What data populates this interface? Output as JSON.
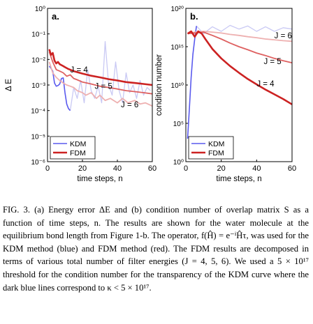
{
  "chart_data": [
    {
      "type": "line",
      "panel_label": "a.",
      "xlabel": "time steps, n",
      "ylabel": "Δ E",
      "xlim": [
        0,
        60
      ],
      "ylim": [
        1e-06,
        1
      ],
      "yscale": "log",
      "xticks": [
        "0",
        "20",
        "40",
        "60"
      ],
      "yticks": [
        "10⁻⁶",
        "10⁻⁵",
        "10⁻⁴",
        "10⁻³",
        "10⁻²",
        "10⁻¹",
        "10⁰"
      ],
      "series": [
        {
          "group": "KDM",
          "color": "#5a5aee",
          "x": [
            1,
            2,
            3,
            4,
            5,
            6,
            7,
            8,
            9,
            10,
            11,
            12,
            13
          ],
          "y": [
            0.0055,
            0.0045,
            0.0035,
            0.0012,
            0.0009,
            0.00095,
            0.0011,
            0.0018,
            0.0019,
            0.0005,
            0.00018,
            0.00012,
            0.0001
          ]
        },
        {
          "group": "KDM-faint",
          "color": "#c9c9f4",
          "x": [
            13,
            15,
            17,
            19,
            21,
            23,
            25,
            27,
            29,
            31,
            33,
            35,
            37,
            39,
            41,
            43,
            45,
            47,
            49,
            51,
            53,
            55,
            57,
            59
          ],
          "y": [
            0.0001,
            0.0008,
            0.0003,
            0.0015,
            0.0002,
            0.004,
            0.0006,
            0.0003,
            0.0009,
            0.0002,
            0.05,
            0.001,
            0.0004,
            0.008,
            0.0006,
            0.0002,
            0.003,
            0.0005,
            0.001,
            0.0003,
            0.0015,
            0.0004,
            0.0008,
            0.0006
          ]
        },
        {
          "name": "J = 4",
          "group": "FDM",
          "color": "#cc2222",
          "x": [
            1,
            2,
            3,
            4,
            5,
            6,
            7,
            8,
            9,
            10,
            12,
            15,
            20,
            25,
            30,
            35,
            40,
            45,
            50,
            55,
            60
          ],
          "y": [
            0.025,
            0.015,
            0.018,
            0.009,
            0.007,
            0.008,
            0.0065,
            0.006,
            0.0055,
            0.005,
            0.0042,
            0.0035,
            0.0028,
            0.0023,
            0.002,
            0.0017,
            0.0015,
            0.0013,
            0.0012,
            0.0011,
            0.001
          ]
        },
        {
          "name": "J = 5",
          "group": "FDM",
          "color": "#de6060",
          "x": [
            1,
            3,
            5,
            7,
            9,
            11,
            13,
            15,
            17,
            20,
            25,
            30,
            35,
            40,
            45,
            50,
            55,
            60
          ],
          "y": [
            0.02,
            0.008,
            0.004,
            0.0035,
            0.003,
            0.0022,
            0.0025,
            0.0018,
            0.0016,
            0.0013,
            0.0011,
            0.0009,
            0.0008,
            0.0007,
            0.0006,
            0.00055,
            0.0005,
            0.00045
          ]
        },
        {
          "name": "J = 6",
          "group": "FDM",
          "color": "#eeb0b0",
          "x": [
            1,
            3,
            5,
            7,
            9,
            11,
            13,
            15,
            17,
            20,
            22,
            25,
            28,
            30,
            33,
            36,
            40,
            43,
            46,
            50,
            53,
            56,
            60
          ],
          "y": [
            0.008,
            0.003,
            0.002,
            0.0015,
            0.0012,
            0.001,
            0.0009,
            0.0008,
            0.0006,
            0.0005,
            0.0004,
            0.0005,
            0.0003,
            0.0004,
            0.00025,
            0.0003,
            0.0002,
            0.0003,
            0.0002,
            0.00025,
            0.00018,
            0.0002,
            0.00015
          ]
        }
      ],
      "annotations": [
        {
          "text": "J = 4",
          "x": 13,
          "y": 0.004
        },
        {
          "text": "J = 5",
          "x": 27,
          "y": 0.0009
        },
        {
          "text": "J = 6",
          "x": 42,
          "y": 0.00017
        }
      ]
    },
    {
      "type": "line",
      "panel_label": "b.",
      "xlabel": "time steps, n",
      "ylabel": "condition number",
      "xlim": [
        0,
        60
      ],
      "ylim": [
        1,
        1e+20
      ],
      "yscale": "log",
      "xticks": [
        "0",
        "20",
        "40",
        "60"
      ],
      "yticks": [
        "10⁰",
        "10⁵",
        "10¹⁰",
        "10¹⁵",
        "10²⁰"
      ],
      "series": [
        {
          "group": "KDM",
          "color": "#5a5aee",
          "x": [
            1,
            2,
            3,
            4,
            5,
            6
          ],
          "y": [
            1000.0,
            10000000.0,
            100000000000.0,
            100000000000000.0,
            1e+16,
            5e+17
          ]
        },
        {
          "group": "KDM-faint",
          "color": "#c9c9f4",
          "x": [
            6,
            10,
            15,
            20,
            25,
            30,
            35,
            40,
            45,
            50,
            55,
            60
          ],
          "y": [
            5e+17,
            5e+16,
            4e+17,
            1e+17,
            6e+17,
            2e+17,
            5e+17,
            1e+17,
            4e+17,
            1e+17,
            3e+17,
            2e+17
          ]
        },
        {
          "name": "J = 4",
          "group": "FDM",
          "color": "#cc2222",
          "x": [
            1,
            3,
            5,
            7,
            9,
            11,
            15,
            20,
            25,
            30,
            35,
            40,
            45,
            50,
            55,
            60
          ],
          "y": [
            5e+16,
            1e+17,
            2e+16,
            1e+17,
            5e+16,
            1e+16,
            500000000000000.0,
            30000000000000.0,
            3000000000000.0,
            400000000000.0,
            60000000000.0,
            12000000000.0,
            2500000000.0,
            600000000.0,
            150000000.0,
            30000000.0
          ]
        },
        {
          "name": "J = 5",
          "group": "FDM",
          "color": "#de6060",
          "x": [
            1,
            5,
            10,
            15,
            20,
            25,
            30,
            35,
            40,
            45,
            50,
            55,
            60
          ],
          "y": [
            5e+16,
            6e+16,
            8e+16,
            3e+16,
            1e+16,
            3000000000000000.0,
            1000000000000000.0,
            400000000000000.0,
            150000000000000.0,
            70000000000000.0,
            30000000000000.0,
            15000000000000.0,
            8000000000000.0
          ]
        },
        {
          "name": "J = 6",
          "group": "FDM",
          "color": "#eeb0b0",
          "x": [
            1,
            5,
            10,
            15,
            20,
            25,
            30,
            35,
            40,
            45,
            50,
            55,
            60
          ],
          "y": [
            5e+16,
            8e+16,
            1e+17,
            8e+16,
            6e+16,
            4e+16,
            3e+16,
            2e+16,
            1.5e+16,
            1e+16,
            8000000000000000.0,
            6000000000000000.0,
            5000000000000000.0
          ]
        }
      ],
      "annotations": [
        {
          "text": "J = 6",
          "x": 50,
          "y": 3e+16
        },
        {
          "text": "J = 5",
          "x": 44,
          "y": 12000000000000.0
        },
        {
          "text": "J = 4",
          "x": 40,
          "y": 15000000000.0
        }
      ]
    }
  ],
  "legend": {
    "items": [
      {
        "label": "KDM",
        "color": "#5a5aee"
      },
      {
        "label": "FDM",
        "color": "#cc2222"
      }
    ]
  },
  "caption": {
    "label": "FIG. 3.",
    "text": "(a) Energy error ΔE and (b) condition number of overlap matrix S as a function of time steps, n. The results are shown for the water molecule at the equilibrium bond length from Figure 1-b. The operator, f(Ĥ) = e⁻ⁱĤτ, was used for the KDM method (blue) and FDM method (red). The FDM results are decomposed in terms of various total number of filter energies (J = 4, 5, 6). We used a 5 × 10¹⁷ threshold for the condition number for the transparency of the KDM curve where the dark blue lines correspond to κ < 5 × 10¹⁷."
  }
}
